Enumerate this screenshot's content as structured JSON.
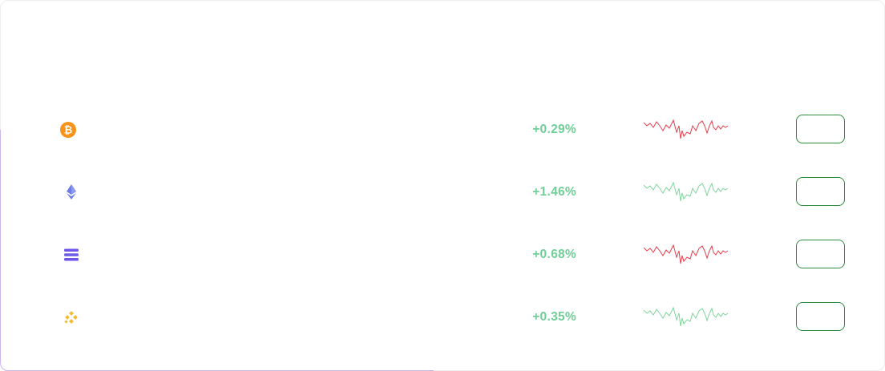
{
  "rows": [
    {
      "icon": "bitcoin-icon",
      "change": "+0.29%",
      "spark_color": "#e53e4a",
      "trade_label": ""
    },
    {
      "icon": "ethereum-icon",
      "change": "+1.46%",
      "spark_color": "#7fd59b",
      "trade_label": ""
    },
    {
      "icon": "solana-icon",
      "change": "+0.68%",
      "spark_color": "#e53e4a",
      "trade_label": ""
    },
    {
      "icon": "binance-icon",
      "change": "+0.35%",
      "spark_color": "#7fd59b",
      "trade_label": ""
    }
  ],
  "colors": {
    "positive": "#6fcf97",
    "button_border": "#2e8b3d"
  }
}
